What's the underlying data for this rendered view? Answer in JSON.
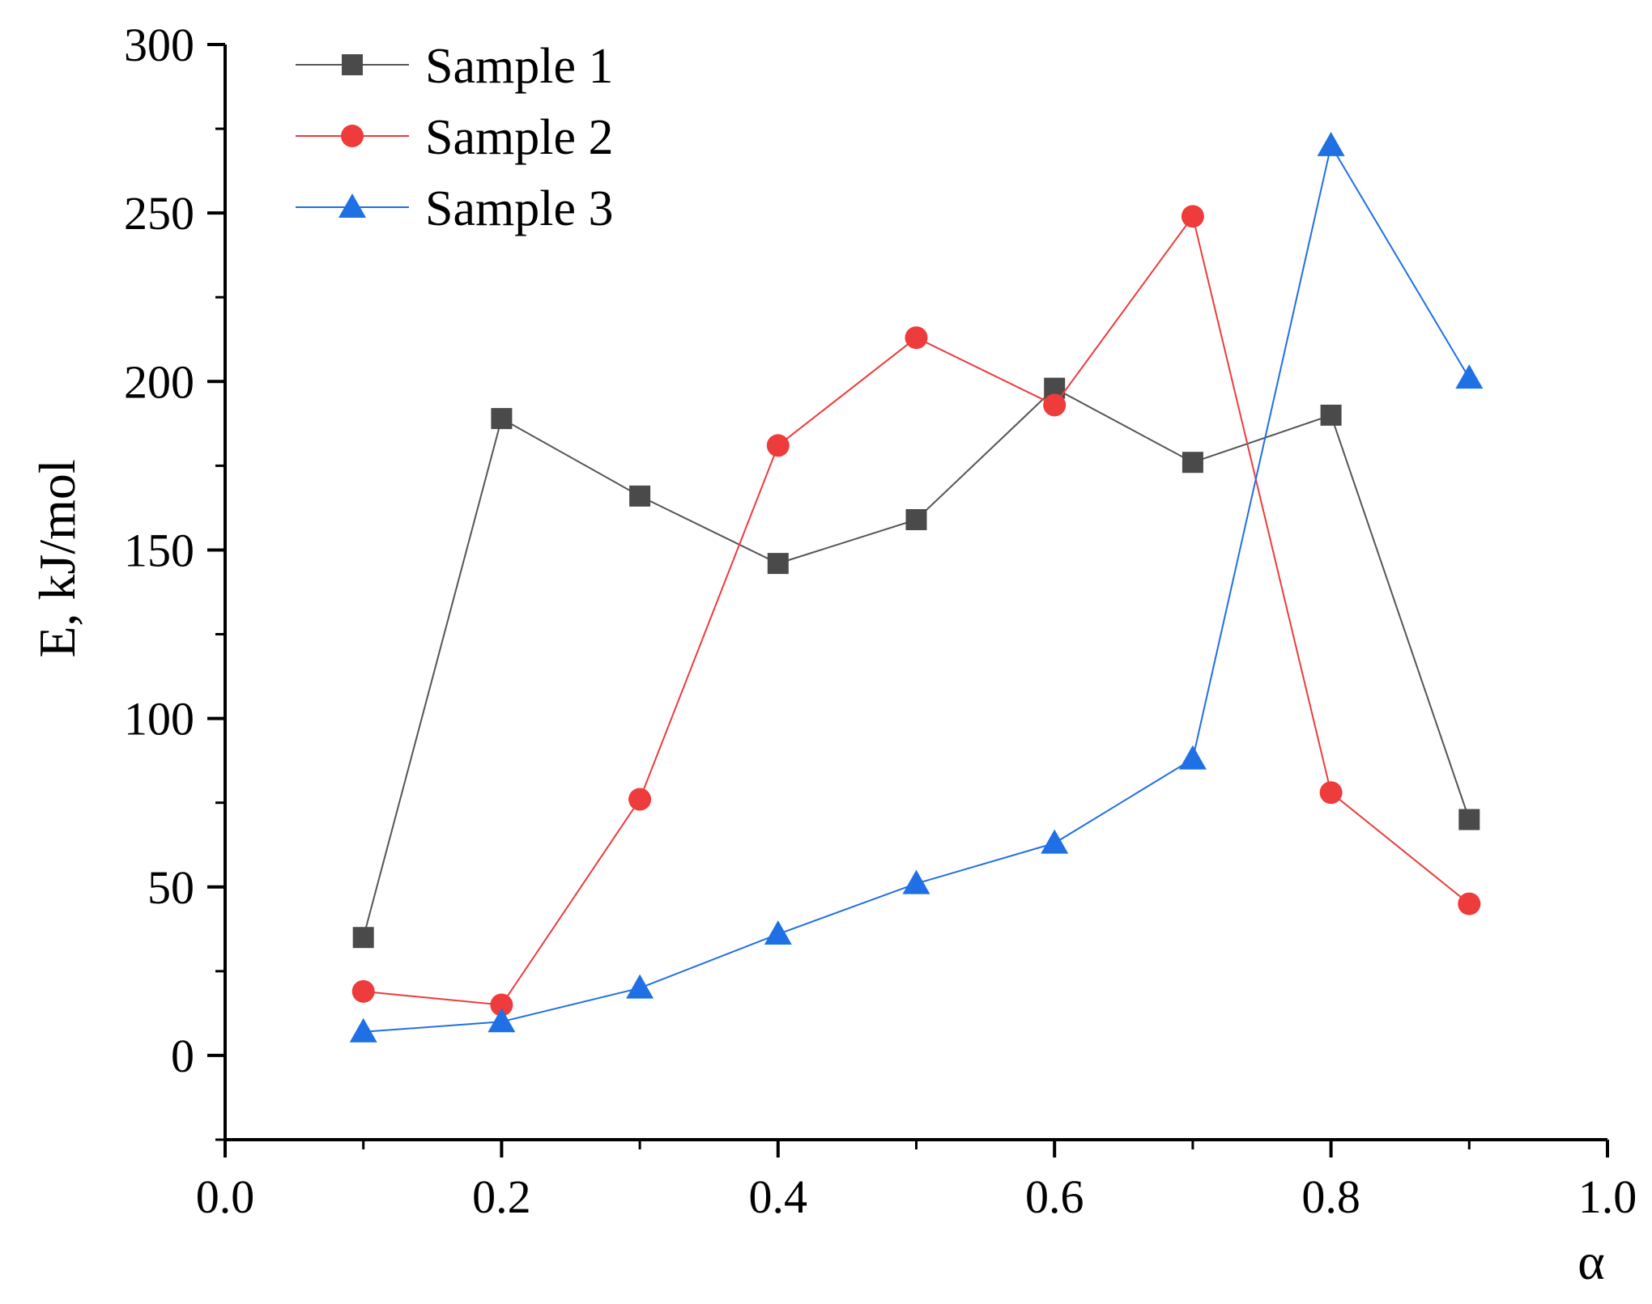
{
  "chart_data": {
    "type": "line",
    "title": "",
    "xlabel": "α",
    "ylabel": "E, kJ/mol",
    "xlim": [
      0.0,
      1.0
    ],
    "ylim": [
      -25,
      300
    ],
    "xticks": [
      0.0,
      0.2,
      0.4,
      0.6,
      0.8,
      1.0
    ],
    "xtick_labels": [
      "0.0",
      "0.2",
      "0.4",
      "0.6",
      "0.8",
      "1.0"
    ],
    "yticks": [
      0,
      50,
      100,
      150,
      200,
      250,
      300
    ],
    "ytick_labels": [
      "0",
      "50",
      "100",
      "150",
      "200",
      "250",
      "300"
    ],
    "x": [
      0.1,
      0.2,
      0.3,
      0.4,
      0.5,
      0.6,
      0.7,
      0.8,
      0.9
    ],
    "legend_position": "top-left",
    "series": [
      {
        "name": "Sample 1",
        "marker": "square",
        "color": "#4a4a4a",
        "line_color": "#555555",
        "values": [
          35,
          189,
          166,
          146,
          159,
          198,
          176,
          190,
          70
        ]
      },
      {
        "name": "Sample 2",
        "marker": "circle",
        "color": "#ee3b3b",
        "line_color": "#ee3b3b",
        "values": [
          19,
          15,
          76,
          181,
          213,
          193,
          249,
          78,
          45
        ]
      },
      {
        "name": "Sample 3",
        "marker": "triangle",
        "color": "#1f6fe5",
        "line_color": "#1f6fe5",
        "values": [
          7,
          10,
          20,
          36,
          51,
          63,
          88,
          270,
          201
        ]
      }
    ]
  }
}
